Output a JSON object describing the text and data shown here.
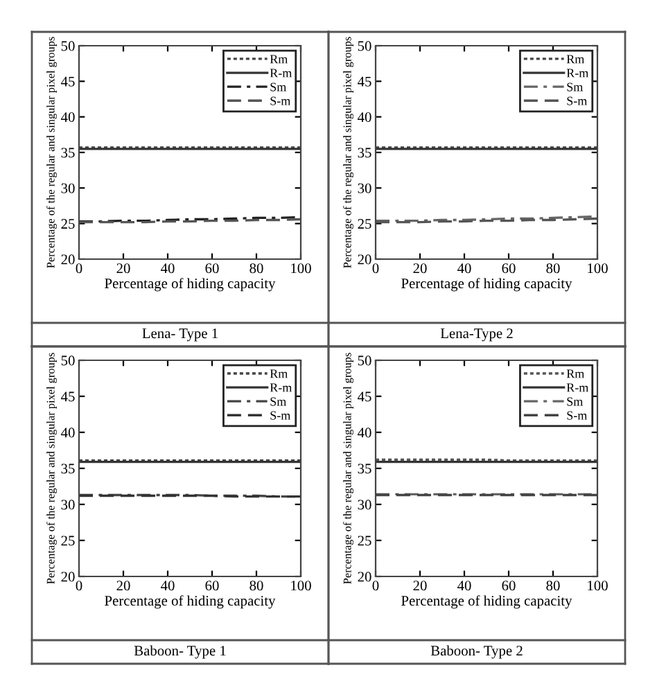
{
  "chart_data": [
    {
      "type": "line",
      "title": "Lena- Type 1",
      "xlabel": "Percentage of hiding capacity",
      "ylabel": "Percentage of the regular and singular pixel groups",
      "x": [
        0,
        10,
        20,
        30,
        40,
        50,
        60,
        70,
        80,
        90,
        100
      ],
      "xlim": [
        0,
        100
      ],
      "xticks": [
        0,
        20,
        40,
        60,
        80,
        100
      ],
      "ylim": [
        20,
        50
      ],
      "yticks": [
        20,
        25,
        30,
        35,
        40,
        45,
        50
      ],
      "grid": false,
      "legend": "top right",
      "series": [
        {
          "name": "Rm",
          "color": "#444444",
          "line_style": "dotted",
          "values": [
            35.7,
            35.7,
            35.7,
            35.7,
            35.7,
            35.7,
            35.7,
            35.7,
            35.7,
            35.7,
            35.7
          ]
        },
        {
          "name": "R-m",
          "color": "#333333",
          "line_style": "solid",
          "values": [
            35.5,
            35.5,
            35.5,
            35.5,
            35.5,
            35.5,
            35.5,
            35.5,
            35.5,
            35.5,
            35.5
          ]
        },
        {
          "name": "Sm",
          "color": "#222222",
          "line_style": "dashdot",
          "values": [
            25.3,
            25.3,
            25.4,
            25.4,
            25.5,
            25.6,
            25.6,
            25.7,
            25.8,
            25.8,
            25.9
          ]
        },
        {
          "name": "S-m",
          "color": "#555555",
          "line_style": "dashed",
          "values": [
            25.2,
            25.2,
            25.2,
            25.2,
            25.3,
            25.3,
            25.4,
            25.4,
            25.5,
            25.5,
            25.6
          ]
        }
      ]
    },
    {
      "type": "line",
      "title": "Lena-Type 2",
      "xlabel": "Percentage of hiding capacity",
      "ylabel": "Percentage of the regular and singular pixel groups",
      "x": [
        0,
        10,
        20,
        30,
        40,
        50,
        60,
        70,
        80,
        90,
        100
      ],
      "xlim": [
        0,
        100
      ],
      "xticks": [
        0,
        20,
        40,
        60,
        80,
        100
      ],
      "ylim": [
        20,
        50
      ],
      "yticks": [
        20,
        25,
        30,
        35,
        40,
        45,
        50
      ],
      "grid": false,
      "legend": "top right",
      "series": [
        {
          "name": "Rm",
          "color": "#444444",
          "line_style": "dotted",
          "values": [
            35.7,
            35.7,
            35.7,
            35.7,
            35.7,
            35.7,
            35.7,
            35.7,
            35.7,
            35.7,
            35.7
          ]
        },
        {
          "name": "R-m",
          "color": "#333333",
          "line_style": "solid",
          "values": [
            35.5,
            35.5,
            35.5,
            35.5,
            35.5,
            35.5,
            35.5,
            35.5,
            35.5,
            35.5,
            35.5
          ]
        },
        {
          "name": "Sm",
          "color": "#666666",
          "line_style": "dashdot",
          "values": [
            25.4,
            25.4,
            25.4,
            25.5,
            25.5,
            25.6,
            25.7,
            25.7,
            25.8,
            25.9,
            26.0
          ]
        },
        {
          "name": "S-m",
          "color": "#555555",
          "line_style": "dashed",
          "values": [
            25.2,
            25.2,
            25.2,
            25.3,
            25.3,
            25.4,
            25.4,
            25.5,
            25.5,
            25.6,
            25.7
          ]
        }
      ]
    },
    {
      "type": "line",
      "title": "Baboon- Type 1",
      "xlabel": "Percentage of hiding capacity",
      "ylabel": "Percentage of the regular and singular pixel groups",
      "x": [
        0,
        10,
        20,
        30,
        40,
        50,
        60,
        70,
        80,
        90,
        100
      ],
      "xlim": [
        0,
        100
      ],
      "xticks": [
        0,
        20,
        40,
        60,
        80,
        100
      ],
      "ylim": [
        20,
        50
      ],
      "yticks": [
        20,
        25,
        30,
        35,
        40,
        45,
        50
      ],
      "grid": false,
      "legend": "top right",
      "series": [
        {
          "name": "Rm",
          "color": "#444444",
          "line_style": "dotted",
          "values": [
            36.1,
            36.1,
            36.1,
            36.1,
            36.1,
            36.1,
            36.1,
            36.1,
            36.1,
            36.1,
            36.1
          ]
        },
        {
          "name": "R-m",
          "color": "#333333",
          "line_style": "solid",
          "values": [
            35.9,
            35.9,
            35.9,
            35.9,
            35.9,
            35.9,
            35.9,
            35.9,
            35.9,
            35.9,
            35.9
          ]
        },
        {
          "name": "Sm",
          "color": "#444444",
          "line_style": "dashdot",
          "values": [
            31.3,
            31.3,
            31.3,
            31.3,
            31.3,
            31.3,
            31.2,
            31.2,
            31.2,
            31.1,
            31.1
          ]
        },
        {
          "name": "S-m",
          "color": "#333333",
          "line_style": "dashed",
          "values": [
            31.2,
            31.2,
            31.2,
            31.2,
            31.2,
            31.2,
            31.2,
            31.1,
            31.1,
            31.1,
            31.1
          ]
        }
      ]
    },
    {
      "type": "line",
      "title": "Baboon- Type 2",
      "xlabel": "Percentage of hiding capacity",
      "ylabel": "Percentage of the regular and singular pixel groups",
      "x": [
        0,
        10,
        20,
        30,
        40,
        50,
        60,
        70,
        80,
        90,
        100
      ],
      "xlim": [
        0,
        100
      ],
      "xticks": [
        0,
        20,
        40,
        60,
        80,
        100
      ],
      "ylim": [
        20,
        50
      ],
      "yticks": [
        20,
        25,
        30,
        35,
        40,
        45,
        50
      ],
      "grid": false,
      "legend": "top right",
      "series": [
        {
          "name": "Rm",
          "color": "#555555",
          "line_style": "dotted",
          "values": [
            36.2,
            36.2,
            36.2,
            36.2,
            36.2,
            36.2,
            36.1,
            36.1,
            36.1,
            36.1,
            36.1
          ]
        },
        {
          "name": "R-m",
          "color": "#333333",
          "line_style": "solid",
          "values": [
            35.9,
            35.9,
            35.9,
            35.9,
            35.9,
            35.9,
            35.9,
            35.9,
            35.9,
            35.9,
            35.9
          ]
        },
        {
          "name": "Sm",
          "color": "#666666",
          "line_style": "dashdot",
          "values": [
            31.4,
            31.4,
            31.4,
            31.4,
            31.4,
            31.4,
            31.4,
            31.4,
            31.4,
            31.4,
            31.4
          ]
        },
        {
          "name": "S-m",
          "color": "#444444",
          "line_style": "dashed",
          "values": [
            31.3,
            31.3,
            31.3,
            31.3,
            31.3,
            31.3,
            31.3,
            31.3,
            31.3,
            31.3,
            31.3
          ]
        }
      ]
    }
  ]
}
